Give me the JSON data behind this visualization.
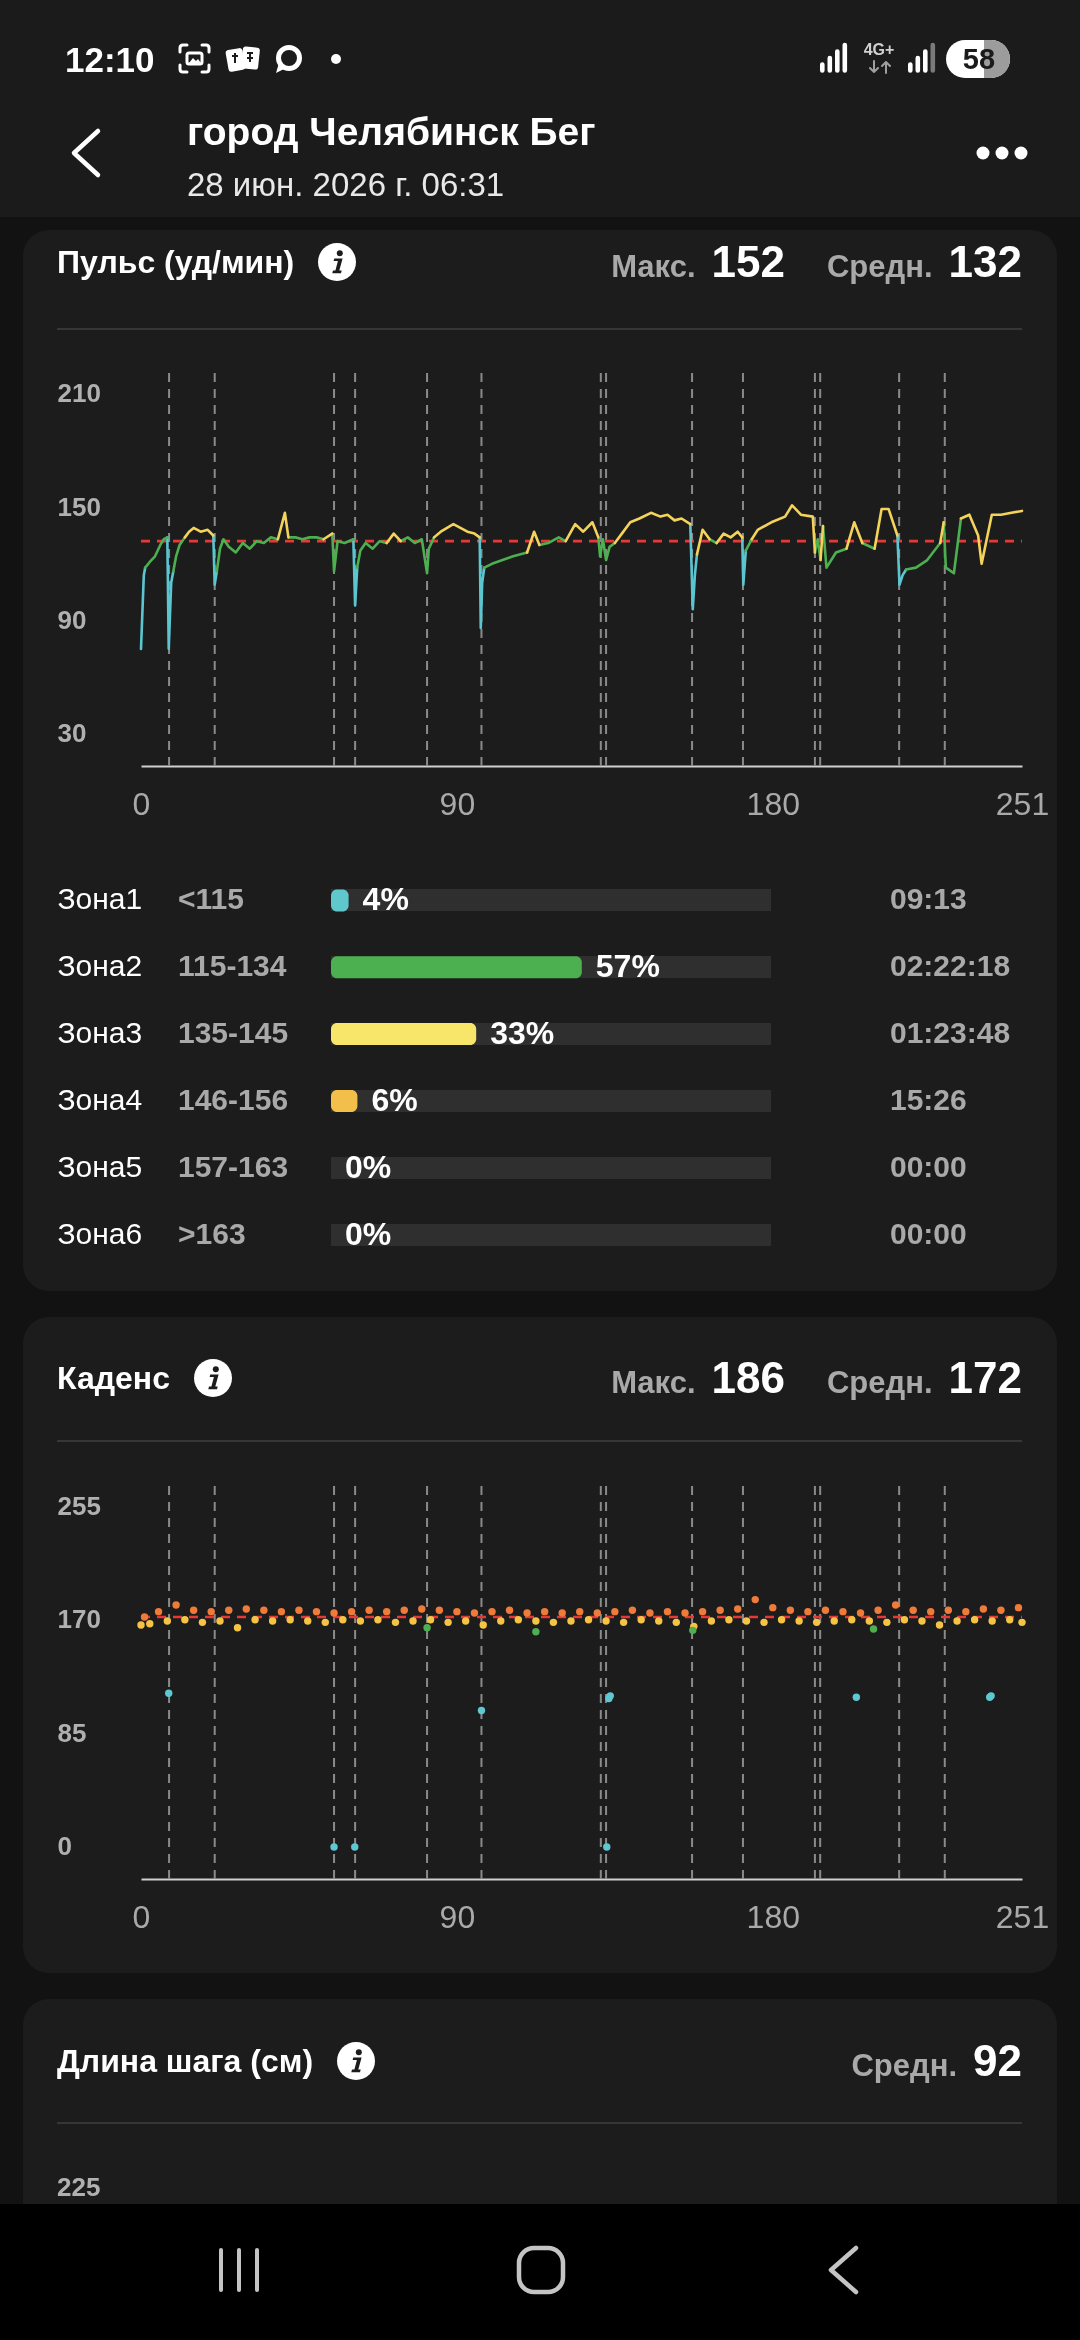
{
  "chart_data": [
    {
      "type": "other",
      "title": "город Челябинск Бег",
      "subtitle": "28 июн. 2026 г. 06:31",
      "annotations": [
        "12:10",
        "4G+",
        "58"
      ]
    },
    {
      "type": "line",
      "title": "Пульс (уд/мин)",
      "annotations": [
        "Макс.",
        "152",
        "Средн.",
        "132"
      ],
      "series": [
        {
          "color": "#5cc6d0",
          "x": [
            0,
            0.8,
            1.2,
            null,
            7.5,
            7.9,
            8.6,
            9.2,
            null,
            20.6,
            21,
            21.6,
            null,
            60.5,
            61,
            61.6,
            null,
            96.5,
            96.8,
            97.2,
            97.8,
            null,
            156.5,
            157.2,
            157.8,
            158.4,
            null,
            171.3,
            171.6,
            172.3,
            null,
            215.5,
            216.1,
            217,
            218
          ],
          "values": [
            75,
            114,
            118,
            null,
            134,
            75,
            110,
            116,
            null,
            135,
            109,
            116,
            null,
            133,
            98,
            118,
            null,
            134,
            86,
            110,
            118,
            null,
            141,
            96,
            114,
            125,
            null,
            134,
            109,
            127,
            null,
            135,
            109,
            114,
            117
          ]
        },
        {
          "color": "#4caf50",
          "x": [
            1.2,
            2.5,
            4,
            5.5,
            6.5,
            7.5,
            null,
            9.2,
            10,
            11,
            12.5,
            null,
            21.6,
            22.5,
            23.5,
            25,
            27,
            29,
            31,
            33,
            35,
            37,
            39,
            null,
            42,
            44,
            46,
            48,
            50,
            52,
            null,
            54.5,
            55,
            56,
            58,
            60.5,
            null,
            61.6,
            62.5,
            64,
            66,
            68,
            70,
            null,
            74,
            76,
            78,
            80,
            81.5,
            82,
            83.5,
            null,
            97.8,
            100,
            103,
            106,
            110,
            null,
            113.5,
            116,
            119,
            121,
            null,
            130.3,
            130.8,
            131.6,
            132.5,
            133.5,
            135,
            null,
            162,
            164,
            null,
            172.3,
            174,
            null,
            192,
            192.8,
            193.6,
            null,
            194.3,
            195.3,
            198,
            201,
            null,
            205.5,
            209,
            null,
            218,
            220.8,
            224,
            227.7,
            null,
            228.7,
            229.3,
            231.6,
            233.6
          ],
          "values": [
            118,
            121,
            124,
            130,
            133,
            134,
            null,
            116,
            124,
            130,
            134,
            null,
            116,
            128,
            133,
            129,
            126,
            131,
            128,
            132,
            131,
            134,
            133,
            null,
            134,
            134,
            133,
            134,
            134,
            133,
            null,
            136,
            116,
            132,
            131,
            133,
            null,
            118,
            127,
            131,
            128,
            132,
            131,
            null,
            132,
            134,
            131,
            133,
            115,
            128,
            134,
            null,
            118,
            120,
            122,
            124,
            126,
            null,
            130,
            131,
            134,
            132,
            null,
            134,
            124,
            133,
            122,
            129,
            131,
            null,
            133,
            131,
            null,
            127,
            133,
            null,
            126,
            133,
            122,
            null,
            140,
            118,
            126,
            128,
            null,
            131,
            128,
            null,
            117,
            118,
            122,
            131,
            null,
            142,
            118,
            115,
            144
          ]
        },
        {
          "color": "#f3d35a",
          "x": [
            12.5,
            13.7,
            15,
            17,
            19,
            20.6,
            null,
            39,
            41,
            42,
            null,
            52,
            54.5,
            null,
            70,
            72,
            74,
            null,
            83.5,
            85.4,
            89,
            91,
            93,
            95,
            96.5,
            null,
            110,
            112,
            113.5,
            null,
            121,
            123.7,
            126,
            128.6,
            130.3,
            null,
            135,
            137,
            139.4,
            142,
            145.3,
            148,
            150,
            152,
            154,
            156.5,
            null,
            158.4,
            160,
            162,
            null,
            164,
            166,
            168,
            170,
            171.3,
            null,
            174,
            175.7,
            179.6,
            183.5,
            185.5,
            188,
            191.4,
            192,
            null,
            193.6,
            194.3,
            null,
            201,
            203.2,
            205.5,
            null,
            209,
            211,
            213,
            215.5,
            null,
            227.7,
            228.7,
            null,
            233.6,
            236,
            238.5,
            239.5,
            242.4,
            245,
            248,
            251
          ],
          "values": [
            134,
            137,
            139,
            137,
            138,
            135,
            null,
            133,
            147,
            134,
            null,
            133,
            136,
            null,
            131,
            136,
            132,
            null,
            134,
            137,
            141,
            139,
            137,
            136,
            134,
            null,
            126,
            137,
            130,
            null,
            132,
            141,
            137,
            142,
            134,
            null,
            131,
            136,
            142,
            144,
            147,
            145,
            146,
            143,
            144,
            141,
            null,
            125,
            138,
            133,
            null,
            131,
            136,
            134,
            137,
            134,
            null,
            133,
            138,
            142,
            145,
            151,
            146,
            145,
            126,
            null,
            122,
            140,
            null,
            128,
            142,
            131,
            null,
            128,
            149,
            149,
            135,
            null,
            131,
            142,
            null,
            144,
            146,
            135,
            120,
            146,
            146,
            147,
            148
          ]
        }
      ],
      "xlim": [
        0,
        251
      ],
      "xticks": [
        0,
        90,
        180,
        251
      ],
      "ylim": [
        13,
        221
      ],
      "yticks": [
        30,
        90,
        150,
        210
      ],
      "ref_lines": [
        {
          "axis": "x",
          "value": 8,
          "color": "#8a8a8a",
          "line_style": "dashed"
        },
        {
          "axis": "x",
          "value": 21,
          "color": "#8a8a8a",
          "line_style": "dashed"
        },
        {
          "axis": "x",
          "value": 55,
          "color": "#8a8a8a",
          "line_style": "dashed"
        },
        {
          "axis": "x",
          "value": 61,
          "color": "#8a8a8a",
          "line_style": "dashed"
        },
        {
          "axis": "x",
          "value": 81.5,
          "color": "#8a8a8a",
          "line_style": "dashed"
        },
        {
          "axis": "x",
          "value": 97,
          "color": "#8a8a8a",
          "line_style": "dashed"
        },
        {
          "axis": "x",
          "value": 131,
          "color": "#8a8a8a",
          "line_style": "dashed"
        },
        {
          "axis": "x",
          "value": 132.5,
          "color": "#8a8a8a",
          "line_style": "dashed"
        },
        {
          "axis": "x",
          "value": 157,
          "color": "#8a8a8a",
          "line_style": "dashed"
        },
        {
          "axis": "x",
          "value": 171.5,
          "color": "#8a8a8a",
          "line_style": "dashed"
        },
        {
          "axis": "x",
          "value": 192,
          "color": "#8a8a8a",
          "line_style": "dashed"
        },
        {
          "axis": "x",
          "value": 193.5,
          "color": "#8a8a8a",
          "line_style": "dashed"
        },
        {
          "axis": "x",
          "value": 216,
          "color": "#8a8a8a",
          "line_style": "dashed"
        },
        {
          "axis": "x",
          "value": 229,
          "color": "#8a8a8a",
          "line_style": "dashed"
        },
        {
          "axis": "y",
          "value": 132,
          "color": "#e53935",
          "line_style": "dashed"
        }
      ]
    },
    {
      "type": "bar",
      "orientation": "horizontal",
      "categories": [
        "Зона1",
        "Зона2",
        "Зона3",
        "Зона4",
        "Зона5",
        "Зона6"
      ],
      "colors": [
        "#5ec8cc",
        "#4caf50",
        "#f8e66a",
        "#f2c04a",
        null,
        null
      ],
      "values": [
        4,
        57,
        33,
        6,
        0,
        0
      ],
      "value_labels": [
        "4%",
        "57%",
        "33%",
        "6%",
        "0%",
        "0%"
      ],
      "xlim": [
        0,
        100
      ],
      "tick_labels": "y",
      "bands": [
        {
          "axis": "x",
          "from": 0,
          "to": 100,
          "color": "#2f2f2f"
        }
      ],
      "annotations": [
        "<115",
        "09:13",
        "115-134",
        "02:22:18",
        "135-145",
        "01:23:48",
        "146-156",
        "15:26",
        "157-163",
        "00:00",
        ">163",
        "00:00"
      ]
    },
    {
      "type": "scatter",
      "title": "Каденс",
      "annotations": [
        "Макс.",
        "186",
        "Средн.",
        "172"
      ],
      "marker": "circle",
      "series": [
        {
          "color": "#f6c445",
          "x": [
            0,
            2.5,
            7.5,
            12.5,
            17.5,
            22.5,
            27.5,
            32.5,
            37.5,
            42.5,
            47.5,
            52.5,
            57.5,
            62.5,
            67.5,
            72.5,
            77.5,
            82.5,
            87.5,
            92.5,
            97.5,
            102.5,
            107.5,
            112.5,
            117.5,
            122.5,
            127.5,
            132.5,
            137.5,
            142.5,
            147.5,
            152.5,
            157.5,
            162.5,
            167.5,
            172.5,
            177.5,
            182.5,
            187.5,
            192.5,
            197.5,
            202.5,
            207.5,
            212.5,
            217.5,
            222.5,
            227.5,
            232.5,
            237.5,
            242.5,
            247.5,
            251
          ],
          "values": [
            166,
            167,
            169,
            170,
            168,
            169,
            164,
            170,
            169,
            170,
            169,
            168,
            170,
            169,
            170,
            168,
            169,
            170,
            168,
            169,
            166,
            169,
            170,
            169,
            168,
            169,
            170,
            169,
            168,
            170,
            169,
            168,
            165,
            169,
            170,
            169,
            168,
            170,
            169,
            168,
            169,
            170,
            169,
            168,
            170,
            169,
            166,
            169,
            170,
            169,
            170,
            168
          ]
        },
        {
          "color": "#ee7b3a",
          "x": [
            1,
            5,
            10,
            15,
            20,
            25,
            30,
            35,
            40,
            45,
            50,
            55,
            60,
            65,
            70,
            75,
            80,
            85,
            90,
            95,
            100,
            105,
            110,
            115,
            120,
            125,
            130,
            135,
            140,
            145,
            150,
            155,
            160,
            165,
            170,
            175,
            180,
            185,
            190,
            195,
            200,
            205,
            210,
            215,
            220,
            225,
            230,
            235,
            240,
            245,
            250
          ],
          "values": [
            172,
            176,
            181,
            177,
            176,
            177,
            178,
            177,
            176,
            177,
            176,
            175,
            176,
            177,
            176,
            177,
            178,
            177,
            176,
            175,
            176,
            177,
            175,
            176,
            175,
            176,
            175,
            176,
            177,
            175,
            176,
            175,
            176,
            177,
            178,
            185,
            179,
            177,
            176,
            177,
            176,
            175,
            177,
            181,
            177,
            176,
            177,
            176,
            178,
            177,
            179
          ]
        },
        {
          "color": "#4caf50",
          "x": [
            81.5,
            112.5,
            157.2,
            208.7
          ],
          "values": [
            164,
            161,
            162,
            163
          ]
        },
        {
          "color": "#5ec8d2",
          "x": [
            7.9,
            55,
            60.9,
            97,
            132.7,
            133.3,
            133.7,
            203.8,
            241.8,
            242.2
          ],
          "values": [
            115,
            0,
            0,
            102,
            0,
            111,
            113,
            112,
            112,
            113
          ]
        }
      ],
      "xlim": [
        0,
        251
      ],
      "xticks": [
        0,
        90,
        180,
        251
      ],
      "ylim": [
        -24,
        270
      ],
      "yticks": [
        0,
        85,
        170,
        255
      ],
      "ref_lines": [
        {
          "axis": "x",
          "value": 8,
          "color": "#8a8a8a",
          "line_style": "dashed"
        },
        {
          "axis": "x",
          "value": 21,
          "color": "#8a8a8a",
          "line_style": "dashed"
        },
        {
          "axis": "x",
          "value": 55,
          "color": "#8a8a8a",
          "line_style": "dashed"
        },
        {
          "axis": "x",
          "value": 61,
          "color": "#8a8a8a",
          "line_style": "dashed"
        },
        {
          "axis": "x",
          "value": 81.5,
          "color": "#8a8a8a",
          "line_style": "dashed"
        },
        {
          "axis": "x",
          "value": 97,
          "color": "#8a8a8a",
          "line_style": "dashed"
        },
        {
          "axis": "x",
          "value": 131,
          "color": "#8a8a8a",
          "line_style": "dashed"
        },
        {
          "axis": "x",
          "value": 132.5,
          "color": "#8a8a8a",
          "line_style": "dashed"
        },
        {
          "axis": "x",
          "value": 157,
          "color": "#8a8a8a",
          "line_style": "dashed"
        },
        {
          "axis": "x",
          "value": 171.5,
          "color": "#8a8a8a",
          "line_style": "dashed"
        },
        {
          "axis": "x",
          "value": 192,
          "color": "#8a8a8a",
          "line_style": "dashed"
        },
        {
          "axis": "x",
          "value": 193.5,
          "color": "#8a8a8a",
          "line_style": "dashed"
        },
        {
          "axis": "x",
          "value": 216,
          "color": "#8a8a8a",
          "line_style": "dashed"
        },
        {
          "axis": "x",
          "value": 229,
          "color": "#8a8a8a",
          "line_style": "dashed"
        },
        {
          "axis": "y",
          "value": 172,
          "color": "#e53935",
          "line_style": "dashed"
        }
      ]
    },
    {
      "type": "other",
      "title": "Длина шага (см)",
      "annotations": [
        "Средн.",
        "92",
        "225"
      ]
    }
  ]
}
